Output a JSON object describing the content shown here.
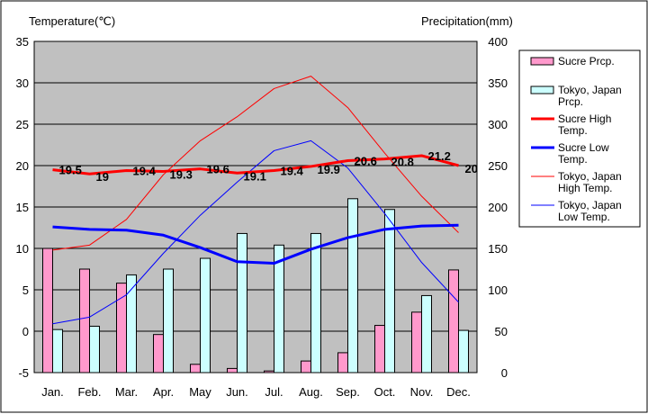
{
  "chart_data": {
    "type": "bar",
    "title_left": "Temperature(℃)",
    "title_right": "Precipitation(mm)",
    "categories": [
      "Jan.",
      "Feb.",
      "Mar.",
      "Apr.",
      "May",
      "Jun.",
      "Jul.",
      "Aug.",
      "Sep.",
      "Oct.",
      "Nov.",
      "Dec."
    ],
    "y_left": {
      "min": -5,
      "max": 35,
      "ticks": [
        "35",
        "30",
        "25",
        "20",
        "15",
        "10",
        "5",
        "0",
        "-5"
      ]
    },
    "y_right": {
      "min": 0,
      "max": 400,
      "ticks": [
        "400",
        "350",
        "300",
        "250",
        "200",
        "150",
        "100",
        "50",
        "0"
      ]
    },
    "series": [
      {
        "name": "Sucre Prcp.",
        "type": "bar",
        "axis": "right",
        "color": "#ff99cc",
        "values": [
          150,
          125,
          108,
          46,
          10,
          5,
          2,
          14,
          24,
          57,
          73,
          124
        ]
      },
      {
        "name": "Tokyo, Japan Prcp.",
        "type": "bar",
        "axis": "right",
        "color": "#ccffff",
        "values": [
          52,
          56,
          118,
          125,
          138,
          168,
          154,
          168,
          210,
          197,
          93,
          51
        ]
      },
      {
        "name": "Sucre High Temp.",
        "type": "line",
        "axis": "left",
        "color": "#ff0000",
        "width": 3,
        "values": [
          19.5,
          19,
          19.4,
          19.3,
          19.6,
          19.1,
          19.4,
          19.9,
          20.6,
          20.8,
          21.2,
          20
        ],
        "labels": [
          "19.5",
          "19",
          "19.4",
          "19.3",
          "19.6",
          "19.1",
          "19.4",
          "19.9",
          "20.6",
          "20.8",
          "21.2",
          "20"
        ]
      },
      {
        "name": "Sucre Low Temp.",
        "type": "line",
        "axis": "left",
        "color": "#0000ff",
        "width": 3,
        "values": [
          12.6,
          12.3,
          12.2,
          11.6,
          10.1,
          8.4,
          8.2,
          9.9,
          11.3,
          12.3,
          12.7,
          12.8
        ]
      },
      {
        "name": "Tokyo, Japan High Temp.",
        "type": "line",
        "axis": "left",
        "color": "#ff0000",
        "width": 1,
        "values": [
          9.8,
          10.4,
          13.5,
          18.9,
          23.0,
          25.9,
          29.3,
          30.8,
          27.0,
          21.5,
          16.3,
          11.9
        ]
      },
      {
        "name": "Tokyo, Japan Low Temp.",
        "type": "line",
        "axis": "left",
        "color": "#0000ff",
        "width": 1,
        "values": [
          0.9,
          1.7,
          4.4,
          9.4,
          14.0,
          18.0,
          21.8,
          23.0,
          19.7,
          14.2,
          8.3,
          3.5
        ]
      }
    ],
    "legend": {
      "position": "right",
      "entries": [
        {
          "key": "bar-pink",
          "lines": [
            "Sucre Prcp."
          ]
        },
        {
          "key": "bar-cyan",
          "lines": [
            "Tokyo, Japan",
            "Prcp."
          ]
        },
        {
          "key": "line-red-thick",
          "lines": [
            "Sucre High",
            "Temp."
          ]
        },
        {
          "key": "line-blue-thick",
          "lines": [
            "Sucre Low",
            "Temp."
          ]
        },
        {
          "key": "line-red-thin",
          "lines": [
            "Tokyo, Japan",
            "High Temp."
          ]
        },
        {
          "key": "line-blue-thin",
          "lines": [
            "Tokyo, Japan",
            "Low Temp."
          ]
        }
      ]
    },
    "grid": true,
    "plot_background": "#c0c0c0"
  }
}
